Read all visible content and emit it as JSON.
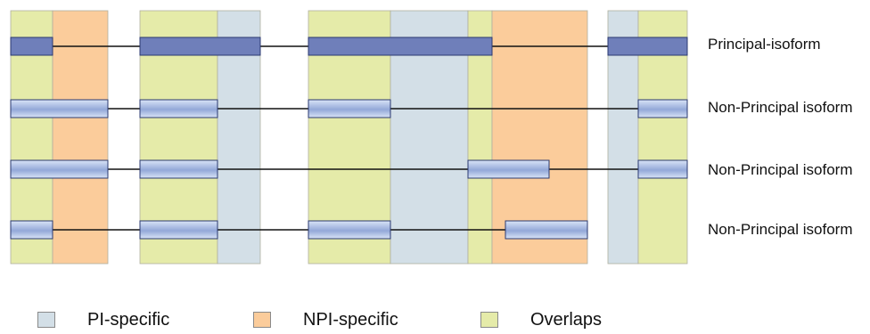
{
  "colors": {
    "pi_specific": "#d3dfe7",
    "npi_specific": "#fbcc9b",
    "overlaps": "#e5eba9",
    "band_border": "#b0b0a0",
    "principal_exon": "#6f7fba",
    "nonprincipal_exon_light": "#d9e4f7",
    "nonprincipal_exon_mid": "#93a8d8",
    "exon_border": "#2b3a70",
    "intron_line": "#111111"
  },
  "isoforms": [
    {
      "label": "Principal-isoform",
      "kind": "principal"
    },
    {
      "label": "Non-Principal isoform",
      "kind": "non-principal"
    },
    {
      "label": "Non-Principal isoform",
      "kind": "non-principal"
    },
    {
      "label": "Non-Principal isoform",
      "kind": "non-principal"
    }
  ],
  "legend": [
    {
      "label": "PI-specific",
      "color_key": "pi_specific"
    },
    {
      "label": "NPI-specific",
      "color_key": "npi_specific"
    },
    {
      "label": "Overlaps",
      "color_key": "overlaps"
    }
  ]
}
